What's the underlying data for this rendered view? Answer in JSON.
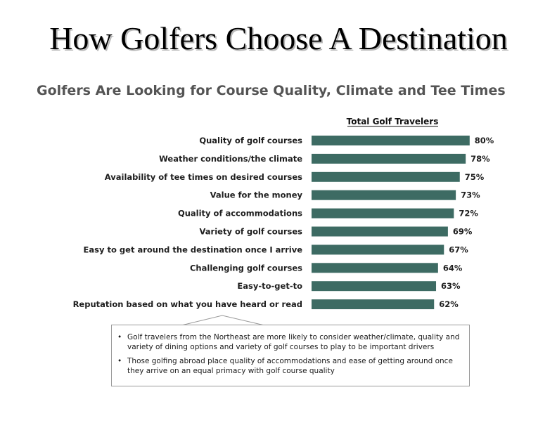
{
  "page": {
    "title": "How Golfers Choose A Destination",
    "subtitle": "Golfers Are Looking for Course Quality, Climate and Tee Times"
  },
  "chart_data": {
    "type": "bar",
    "orientation": "horizontal",
    "series_label": "Total Golf Travelers",
    "categories": [
      "Quality of golf courses",
      "Weather conditions/the climate",
      "Availability of tee times on desired courses",
      "Value for the money",
      "Quality of accommodations",
      "Variety of golf courses",
      "Easy to get around the destination once I arrive",
      "Challenging golf courses",
      "Easy-to-get-to",
      "Reputation based on what you have heard or read"
    ],
    "values": [
      80,
      78,
      75,
      73,
      72,
      69,
      67,
      64,
      63,
      62
    ],
    "value_labels": [
      "80%",
      "78%",
      "75%",
      "73%",
      "72%",
      "69%",
      "67%",
      "64%",
      "63%",
      "62%"
    ],
    "bar_color": "#3d6b63",
    "xlim": [
      0,
      100
    ]
  },
  "callout": {
    "bullets": [
      "Golf travelers from the Northeast are more likely to consider weather/climate, quality and variety of dining options and variety of golf courses to play to be important drivers",
      "Those golfing abroad place quality of accommodations and ease of getting around once they arrive on an equal primacy with golf course quality"
    ],
    "bullet_glyph": "•"
  }
}
